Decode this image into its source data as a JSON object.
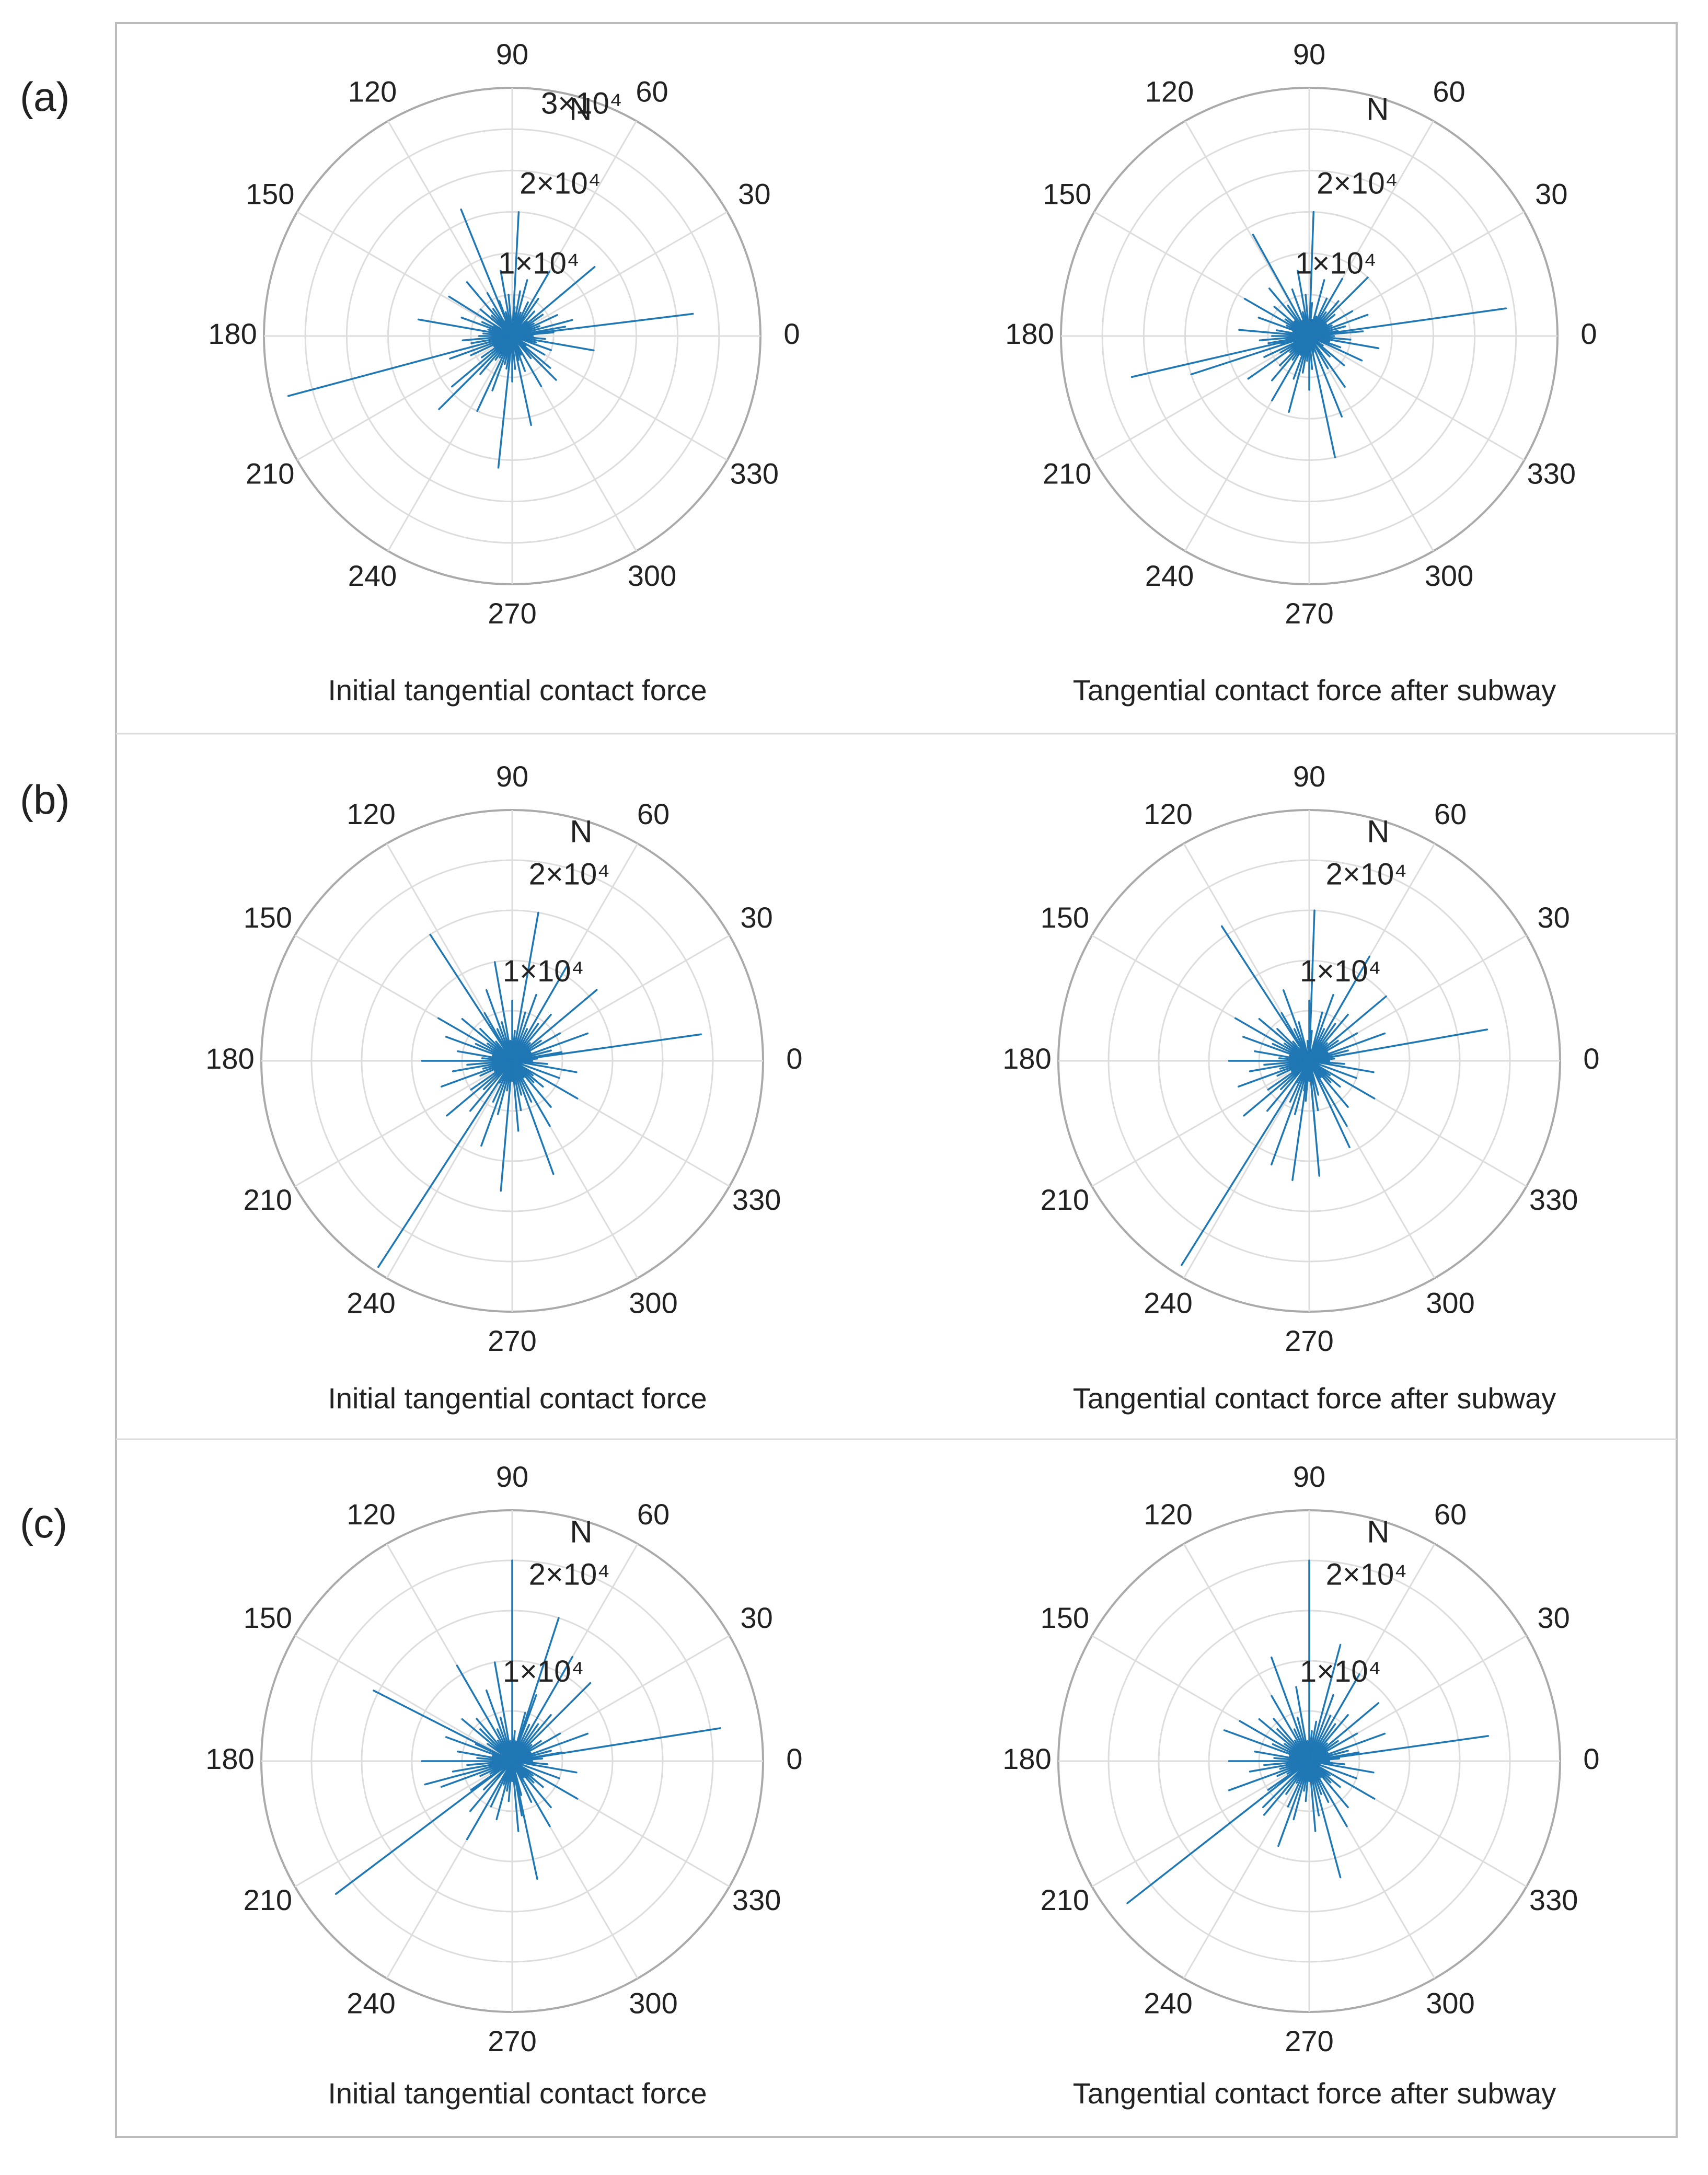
{
  "figure": {
    "panel_labels": [
      "(a)",
      "(b)",
      "(c)"
    ],
    "colors": {
      "series": "#1f77b4",
      "grid": "#dddddd",
      "outer": "#aaaaaa",
      "frame": "#bbbbbb",
      "text": "#222222"
    }
  },
  "chart_data": [
    {
      "panel": "(a)",
      "type": "polar-compass",
      "title": "Initial tangential contact force",
      "unit_label": "N",
      "theta_ticks": [
        "0",
        "30",
        "60",
        "90",
        "120",
        "150",
        "180",
        "210",
        "240",
        "270",
        "300",
        "330"
      ],
      "r_max": 30000,
      "r_ticks": [
        {
          "value": 10000,
          "label": "1×10⁴"
        },
        {
          "value": 20000,
          "label": "2×10⁴"
        },
        {
          "value": 30000,
          "label": "3×10⁴"
        }
      ],
      "series": {
        "name": "Tangential contact force",
        "angles_deg": [
          195,
          7,
          112,
          264,
          87,
          40,
          225,
          245,
          170,
          282,
          220,
          350,
          148,
          60,
          130,
          100,
          200,
          15,
          315,
          250,
          75,
          300,
          160,
          10,
          320,
          25,
          120,
          230,
          185,
          55,
          80,
          205,
          270,
          340,
          140,
          95,
          190,
          5,
          290,
          65,
          215,
          110,
          330,
          35,
          155,
          275,
          125,
          355,
          48,
          260,
          180,
          85,
          235,
          20,
          310,
          175,
          135,
          255,
          70,
          345,
          165,
          30,
          105,
          240,
          285,
          150,
          210,
          295,
          45,
          0,
          325,
          115
        ],
        "magnitudes": [
          28000,
          22000,
          16500,
          16000,
          15000,
          13000,
          12500,
          10000,
          11500,
          11000,
          9500,
          10000,
          9000,
          9000,
          8500,
          8000,
          8000,
          7500,
          7500,
          7000,
          7000,
          7000,
          6500,
          6500,
          6000,
          6000,
          6000,
          6000,
          6000,
          5500,
          5500,
          5500,
          5500,
          5000,
          5000,
          5000,
          5000,
          5000,
          4500,
          4500,
          4500,
          4500,
          4500,
          4500,
          4000,
          4000,
          4000,
          4000,
          4000,
          4000,
          4000,
          3500,
          3500,
          3500,
          3500,
          3500,
          3500,
          3500,
          3000,
          3000,
          3000,
          3000,
          3000,
          3000,
          3000,
          2500,
          2500,
          2500,
          2500,
          2500,
          2000,
          2000
        ]
      }
    },
    {
      "panel": "(a)",
      "type": "polar-compass",
      "title": "Tangential contact force after subway",
      "unit_label": "N",
      "theta_ticks": [
        "0",
        "30",
        "60",
        "90",
        "120",
        "150",
        "180",
        "210",
        "240",
        "270",
        "300",
        "330"
      ],
      "r_max": 30000,
      "r_ticks": [
        {
          "value": 10000,
          "label": "1×10⁴"
        },
        {
          "value": 20000,
          "label": "2×10⁴"
        }
      ],
      "series": {
        "name": "Tangential contact force",
        "angles_deg": [
          193,
          8,
          119,
          282,
          88,
          198,
          45,
          292,
          255,
          150,
          240,
          215,
          175,
          350,
          100,
          60,
          305,
          20,
          130,
          230,
          75,
          335,
          160,
          5,
          270,
          205,
          30,
          110,
          185,
          320,
          50,
          250,
          140,
          95,
          190,
          355,
          65,
          225,
          180,
          15,
          300,
          125,
          260,
          40,
          170,
          340,
          85,
          210,
          275,
          10,
          145,
          235,
          55,
          315,
          195,
          105,
          25,
          265,
          155,
          0,
          220,
          70,
          345,
          135,
          245,
          35,
          285,
          165,
          80,
          325,
          200,
          115
        ],
        "magnitudes": [
          22000,
          24000,
          14000,
          15000,
          15000,
          15000,
          10000,
          10500,
          9500,
          9000,
          9000,
          9000,
          8500,
          8500,
          8000,
          8000,
          7500,
          7500,
          7500,
          7000,
          7000,
          7000,
          6500,
          6500,
          6500,
          6000,
          6000,
          6000,
          6000,
          5500,
          5500,
          5500,
          5500,
          5000,
          5000,
          5000,
          5000,
          5000,
          4500,
          4500,
          4500,
          4500,
          4500,
          4000,
          4000,
          4000,
          4000,
          4000,
          4000,
          3500,
          3500,
          3500,
          3500,
          3500,
          3500,
          3000,
          3000,
          3000,
          3000,
          3000,
          3000,
          2500,
          2500,
          2500,
          2500,
          2500,
          2000,
          2000,
          2000,
          2000,
          2000,
          2000
        ]
      }
    },
    {
      "panel": "(b)",
      "type": "polar-compass",
      "title": "Initial tangential contact force",
      "unit_label": "N",
      "theta_ticks": [
        "0",
        "30",
        "60",
        "90",
        "120",
        "150",
        "180",
        "210",
        "240",
        "270",
        "300",
        "330"
      ],
      "r_max": 25000,
      "r_ticks": [
        {
          "value": 10000,
          "label": "1×10⁴"
        },
        {
          "value": 20000,
          "label": "2×10⁴"
        }
      ],
      "series": {
        "name": "Tangential contact force",
        "angles_deg": [
          237,
          8,
          123,
          265,
          80,
          290,
          60,
          40,
          250,
          100,
          220,
          180,
          300,
          150,
          20,
          330,
          200,
          110,
          70,
          275,
          160,
          350,
          140,
          230,
          50,
          310,
          190,
          90,
          255,
          30,
          170,
          120,
          280,
          215,
          10,
          340,
          75,
          245,
          135,
          295,
          55,
          185,
          105,
          320,
          225,
          15,
          155,
          265,
          65,
          205,
          355,
          115,
          285,
          35,
          175,
          145,
          260,
          85,
          315,
          195,
          5,
          130,
          240,
          45,
          325,
          210,
          95,
          270,
          165,
          25,
          305,
          0
        ],
        "magnitudes": [
          24500,
          19000,
          15000,
          13000,
          15000,
          12000,
          11000,
          11000,
          9000,
          10000,
          8500,
          9000,
          7500,
          8500,
          8000,
          7500,
          7500,
          7500,
          7000,
          7000,
          7000,
          6500,
          6500,
          6500,
          6000,
          6000,
          6000,
          6000,
          5500,
          5500,
          5500,
          5500,
          5000,
          5000,
          5000,
          5000,
          5000,
          4500,
          4500,
          4500,
          4500,
          4500,
          4000,
          4000,
          4000,
          4000,
          4000,
          4000,
          3500,
          3500,
          3500,
          3500,
          3500,
          3500,
          3000,
          3000,
          3000,
          3000,
          3000,
          3000,
          2500,
          2500,
          2500,
          2500,
          2500,
          2000,
          2000,
          2000,
          2000,
          2000,
          2000,
          2000
        ]
      }
    },
    {
      "panel": "(b)",
      "type": "polar-compass",
      "title": "Tangential contact force after subway",
      "unit_label": "N",
      "theta_ticks": [
        "0",
        "30",
        "60",
        "90",
        "120",
        "150",
        "180",
        "210",
        "240",
        "270",
        "300",
        "330"
      ],
      "r_max": 25000,
      "r_ticks": [
        {
          "value": 10000,
          "label": "1×10⁴"
        },
        {
          "value": 20000,
          "label": "2×10⁴"
        }
      ],
      "series": {
        "name": "Tangential contact force",
        "angles_deg": [
          238,
          10,
          123,
          88,
          262,
          275,
          60,
          295,
          250,
          40,
          220,
          180,
          300,
          150,
          20,
          330,
          200,
          110,
          70,
          275,
          160,
          350,
          140,
          230,
          50,
          310,
          190,
          90,
          255,
          30,
          170,
          120,
          280,
          215,
          10,
          340,
          75,
          245,
          135,
          295,
          55,
          185,
          105,
          320,
          225,
          15,
          155,
          265,
          65,
          205,
          355,
          115,
          285,
          35,
          175,
          145,
          260,
          85,
          315,
          195,
          5,
          130,
          240,
          45,
          325,
          210,
          95,
          270,
          165,
          25,
          305,
          0
        ],
        "magnitudes": [
          24000,
          18000,
          16000,
          15000,
          12000,
          11500,
          12000,
          9500,
          11000,
          10000,
          8500,
          8000,
          7500,
          8500,
          8000,
          7500,
          7500,
          7500,
          7000,
          7000,
          7000,
          6500,
          6500,
          6500,
          6000,
          6000,
          6000,
          6000,
          5500,
          5500,
          5500,
          5500,
          5000,
          5000,
          5000,
          5000,
          5000,
          4500,
          4500,
          4500,
          4500,
          4500,
          4000,
          4000,
          4000,
          4000,
          4000,
          4000,
          3500,
          3500,
          3500,
          3500,
          3500,
          3500,
          3000,
          3000,
          3000,
          3000,
          3000,
          3000,
          2500,
          2500,
          2500,
          2500,
          2500,
          2000,
          2000,
          2000,
          2000,
          2000,
          2000,
          2000
        ]
      }
    },
    {
      "panel": "(c)",
      "type": "polar-compass",
      "title": "Initial tangential contact force",
      "unit_label": "N",
      "theta_ticks": [
        "0",
        "30",
        "60",
        "90",
        "120",
        "150",
        "180",
        "210",
        "240",
        "270",
        "300",
        "330"
      ],
      "r_max": 25000,
      "r_ticks": [
        {
          "value": 10000,
          "label": "1×10⁴"
        },
        {
          "value": 20000,
          "label": "2×10⁴"
        }
      ],
      "series": {
        "name": "Tangential contact force",
        "angles_deg": [
          217,
          9,
          90,
          153,
          282,
          72,
          60,
          120,
          45,
          195,
          100,
          240,
          180,
          300,
          20,
          330,
          200,
          110,
          70,
          275,
          160,
          350,
          140,
          230,
          50,
          310,
          190,
          255,
          30,
          170,
          130,
          280,
          215,
          10,
          340,
          75,
          245,
          135,
          295,
          55,
          185,
          105,
          320,
          225,
          15,
          155,
          265,
          65,
          205,
          355,
          115,
          285,
          35,
          175,
          145,
          260,
          85,
          315,
          195,
          5,
          125,
          250,
          40,
          325,
          210,
          95,
          270,
          165,
          25,
          305,
          0,
          80
        ],
        "magnitudes": [
          22000,
          21000,
          20000,
          15500,
          12000,
          15000,
          12000,
          11000,
          11000,
          9000,
          10000,
          9000,
          9000,
          7500,
          8000,
          7500,
          7500,
          7500,
          7000,
          7000,
          7000,
          6500,
          6500,
          6500,
          6000,
          6000,
          6000,
          6000,
          5500,
          5500,
          5500,
          5500,
          5000,
          5000,
          5000,
          5000,
          5000,
          4500,
          4500,
          4500,
          4500,
          4500,
          4000,
          4000,
          4000,
          4000,
          4000,
          4000,
          3500,
          3500,
          3500,
          3500,
          3500,
          3500,
          3000,
          3000,
          3000,
          3000,
          3000,
          3000,
          2500,
          2500,
          2500,
          2500,
          2500,
          2000,
          2000,
          2000,
          2000,
          2000,
          2000,
          2000
        ]
      }
    },
    {
      "panel": "(c)",
      "type": "polar-compass",
      "title": "Tangential contact force after subway",
      "unit_label": "N",
      "theta_ticks": [
        "0",
        "30",
        "60",
        "90",
        "120",
        "150",
        "180",
        "210",
        "240",
        "270",
        "300",
        "330"
      ],
      "r_max": 25000,
      "r_ticks": [
        {
          "value": 10000,
          "label": "1×10⁴"
        },
        {
          "value": 20000,
          "label": "2×10⁴"
        }
      ],
      "series": {
        "name": "Tangential contact force",
        "angles_deg": [
          218,
          8,
          90,
          285,
          110,
          75,
          60,
          40,
          250,
          160,
          200,
          180,
          300,
          150,
          20,
          330,
          100,
          120,
          70,
          275,
          230,
          350,
          140,
          225,
          50,
          310,
          190,
          255,
          30,
          170,
          130,
          280,
          215,
          10,
          340,
          65,
          245,
          135,
          295,
          55,
          185,
          105,
          320,
          235,
          15,
          155,
          265,
          80,
          205,
          355,
          115,
          290,
          35,
          175,
          145,
          260,
          85,
          315,
          195,
          5,
          125,
          240,
          45,
          325,
          210,
          95,
          270,
          165,
          25,
          305,
          0,
          88
        ],
        "magnitudes": [
          23000,
          18000,
          20000,
          12000,
          11000,
          12000,
          10000,
          9000,
          9000,
          9000,
          8500,
          8000,
          7500,
          8000,
          8000,
          7500,
          7500,
          7500,
          7000,
          7000,
          7000,
          6500,
          6500,
          6500,
          6000,
          6000,
          6000,
          6000,
          5500,
          5500,
          5500,
          5500,
          5000,
          5000,
          5000,
          5000,
          5000,
          4500,
          4500,
          4500,
          4500,
          4500,
          4000,
          4000,
          4000,
          4000,
          4000,
          4000,
          3500,
          3500,
          3500,
          3500,
          3500,
          3500,
          3000,
          3000,
          3000,
          3000,
          3000,
          3000,
          2500,
          2500,
          2500,
          2500,
          2500,
          2000,
          2000,
          2000,
          2000,
          2000,
          2000,
          2000
        ]
      }
    }
  ]
}
